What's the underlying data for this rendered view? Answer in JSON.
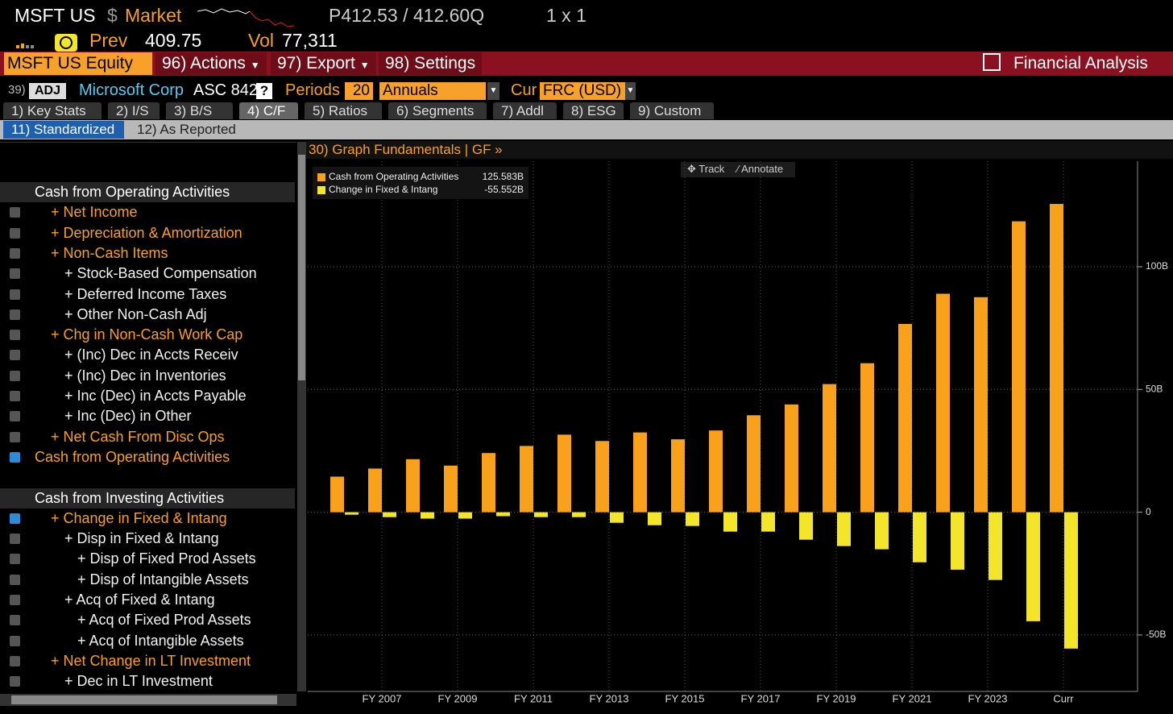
{
  "header": {
    "ticker": "MSFT US",
    "currency_sign": "$",
    "market": "Market",
    "price": "P412.53 / 412.60Q",
    "size": "1 x 1",
    "prev_label": "Prev",
    "prev": "409.75",
    "vol_label": "Vol",
    "vol": "77,311"
  },
  "menu": {
    "security": "MSFT US Equity",
    "actions": "96) Actions",
    "export": "97) Export",
    "settings": "98) Settings",
    "function": "Financial Analysis"
  },
  "controls": {
    "number": "39)",
    "adj": "ADJ",
    "company": "Microsoft Corp",
    "standard": "ASC 842",
    "help": "?",
    "periods_label": "Periods",
    "periods": "20",
    "period_type": "Annuals",
    "cur_label": "Cur",
    "currency": "FRC (USD)"
  },
  "tabs": [
    "1) Key Stats",
    "2) I/S",
    "3) B/S",
    "4) C/F",
    "5) Ratios",
    "6) Segments",
    "7) Addl",
    "8) ESG",
    "9) Custom"
  ],
  "active_tab": 3,
  "subtabs": [
    "11) Standardized",
    "12) As Reported"
  ],
  "active_subtab": 0,
  "rows": [
    {
      "section": "Cash from Operating Activities"
    },
    {
      "text": "+ Net Income",
      "level": 1,
      "checked": false
    },
    {
      "text": "+ Depreciation & Amortization",
      "level": 1,
      "checked": false
    },
    {
      "text": "+ Non-Cash Items",
      "level": 1,
      "checked": false
    },
    {
      "text": "+ Stock-Based Compensation",
      "level": 2,
      "checked": false
    },
    {
      "text": "+ Deferred Income Taxes",
      "level": 2,
      "checked": false
    },
    {
      "text": "+ Other Non-Cash Adj",
      "level": 2,
      "checked": false
    },
    {
      "text": "+ Chg in Non-Cash Work Cap",
      "level": 1,
      "checked": false
    },
    {
      "text": "+ (Inc) Dec in Accts Receiv",
      "level": 2,
      "checked": false
    },
    {
      "text": "+ (Inc) Dec in Inventories",
      "level": 2,
      "checked": false
    },
    {
      "text": "+ Inc (Dec) in Accts Payable",
      "level": 2,
      "checked": false
    },
    {
      "text": "+ Inc (Dec) in Other",
      "level": 2,
      "checked": false
    },
    {
      "text": "+ Net Cash From Disc Ops",
      "level": 1,
      "checked": false
    },
    {
      "text": "Cash from Operating Activities",
      "level": 0,
      "checked": true
    },
    {
      "section": "Cash from Investing Activities"
    },
    {
      "text": "+ Change in Fixed & Intang",
      "level": 1,
      "checked": true
    },
    {
      "text": "+ Disp in Fixed & Intang",
      "level": 2,
      "checked": false
    },
    {
      "text": "+ Disp of Fixed Prod Assets",
      "level": 3,
      "checked": false
    },
    {
      "text": "+ Disp of Intangible Assets",
      "level": 3,
      "checked": false
    },
    {
      "text": "+ Acq of Fixed & Intang",
      "level": 2,
      "checked": false
    },
    {
      "text": "+ Acq of Fixed Prod Assets",
      "level": 3,
      "checked": false
    },
    {
      "text": "+ Acq of Intangible Assets",
      "level": 3,
      "checked": false
    },
    {
      "text": "+ Net Change in LT Investment",
      "level": 1,
      "checked": false
    },
    {
      "text": "+ Dec in LT Investment",
      "level": 2,
      "checked": false
    }
  ],
  "panel_title": "30) Graph Fundamentals | GF »",
  "tools": [
    "Track",
    "Annotate"
  ],
  "chart_data": {
    "type": "bar",
    "categories": [
      null,
      "FY 2007",
      null,
      "FY 2009",
      null,
      "FY 2011",
      null,
      "FY 2013",
      null,
      "FY 2015",
      null,
      "FY 2017",
      null,
      "FY 2019",
      null,
      "FY 2021",
      null,
      "FY 2023",
      null,
      "Curr"
    ],
    "series": [
      {
        "name": "Cash from Operating Activities",
        "color": "#f9a11b",
        "last_label": "125.583B",
        "values": [
          14.5,
          17.8,
          21.6,
          19.0,
          24.1,
          27.0,
          31.6,
          29.0,
          32.5,
          29.7,
          33.3,
          39.5,
          43.9,
          52.2,
          60.7,
          76.7,
          89.0,
          87.6,
          118.5,
          125.583
        ]
      },
      {
        "name": "Change in Fixed & Intang",
        "color": "#f2e52a",
        "last_label": "-55.552B",
        "values": [
          -1.0,
          -2.0,
          -2.6,
          -2.6,
          -1.6,
          -2.0,
          -2.0,
          -4.3,
          -5.3,
          -5.6,
          -7.9,
          -7.9,
          -11.2,
          -13.8,
          -15.1,
          -20.4,
          -23.4,
          -27.6,
          -44.4,
          -55.552
        ]
      }
    ],
    "ylim": [
      -73,
      143
    ],
    "yticks": [
      {
        "value": -50,
        "label": "-50B"
      },
      0,
      {
        "value": 50,
        "label": "50B"
      },
      {
        "value": 100,
        "label": "100B"
      }
    ],
    "grid": true
  }
}
